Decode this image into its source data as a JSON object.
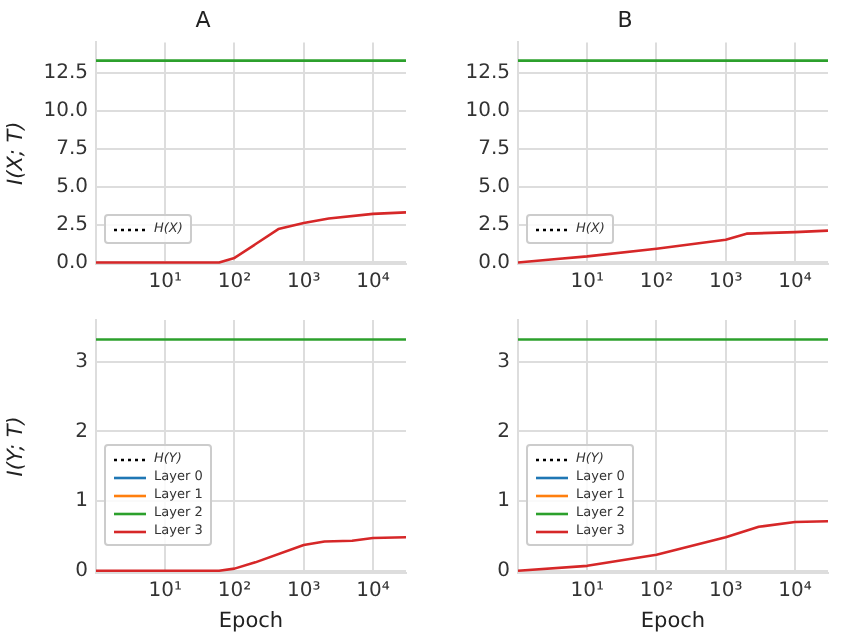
{
  "chart_data": [
    {
      "type": "line",
      "title": "A",
      "ylabel": "I(X; T)",
      "log": "x",
      "grid": true,
      "legend": "bottom left",
      "xlim": [
        1,
        30000
      ],
      "xticks": [
        {
          "value": 10,
          "label": "10¹"
        },
        {
          "value": 100,
          "label": "10²"
        },
        {
          "value": 1000,
          "label": "10³"
        },
        {
          "value": 10000,
          "label": "10⁴"
        }
      ],
      "ylim": [
        -0.1,
        14.5
      ],
      "yticks": [
        {
          "value": 0,
          "label": "0.0"
        },
        {
          "value": 2.5,
          "label": "2.5"
        },
        {
          "value": 5,
          "label": "5.0"
        },
        {
          "value": 7.5,
          "label": "7.5"
        },
        {
          "value": 10,
          "label": "10.0"
        },
        {
          "value": 12.5,
          "label": "12.5"
        }
      ],
      "series": [
        {
          "name": "H(X)",
          "color": "#000000",
          "line_style": "dotted"
        },
        {
          "color": "#2ca02c",
          "x": [
            1,
            30000
          ],
          "values": [
            13.3,
            13.3
          ]
        },
        {
          "color": "#d62728",
          "x": [
            1,
            60,
            100,
            200,
            430,
            1000,
            2300,
            10000,
            30000
          ],
          "values": [
            0,
            0,
            0.3,
            1.2,
            2.2,
            2.6,
            2.9,
            3.2,
            3.3
          ]
        }
      ]
    },
    {
      "type": "line",
      "title": "B",
      "log": "x",
      "grid": true,
      "legend": "bottom left",
      "xlim": [
        1,
        30000
      ],
      "xticks": [
        {
          "value": 10,
          "label": "10¹"
        },
        {
          "value": 100,
          "label": "10²"
        },
        {
          "value": 1000,
          "label": "10³"
        },
        {
          "value": 10000,
          "label": "10⁴"
        }
      ],
      "ylim": [
        -0.1,
        14.5
      ],
      "yticks": [
        {
          "value": 0,
          "label": "0.0"
        },
        {
          "value": 2.5,
          "label": "2.5"
        },
        {
          "value": 5,
          "label": "5.0"
        },
        {
          "value": 7.5,
          "label": "7.5"
        },
        {
          "value": 10,
          "label": "10.0"
        },
        {
          "value": 12.5,
          "label": "12.5"
        }
      ],
      "series": [
        {
          "name": "H(X)",
          "color": "#000000",
          "line_style": "dotted"
        },
        {
          "color": "#2ca02c",
          "x": [
            1,
            30000
          ],
          "values": [
            13.3,
            13.3
          ]
        },
        {
          "color": "#d62728",
          "x": [
            1,
            3,
            10,
            100,
            1000,
            2000,
            10000,
            30000
          ],
          "values": [
            0,
            0.2,
            0.4,
            0.9,
            1.5,
            1.9,
            2.0,
            2.1
          ]
        }
      ]
    },
    {
      "type": "line",
      "ylabel": "I(Y; T)",
      "xlabel": "Epoch",
      "log": "x",
      "grid": true,
      "legend": "bottom left",
      "xlim": [
        1,
        30000
      ],
      "xticks": [
        {
          "value": 10,
          "label": "10¹"
        },
        {
          "value": 100,
          "label": "10²"
        },
        {
          "value": 1000,
          "label": "10³"
        },
        {
          "value": 10000,
          "label": "10⁴"
        }
      ],
      "ylim": [
        -0.03,
        3.6
      ],
      "yticks": [
        0,
        1,
        2,
        3
      ],
      "series": [
        {
          "name": "H(Y)",
          "color": "#000000",
          "line_style": "dotted"
        },
        {
          "name": "Layer 0",
          "color": "#1f77b4"
        },
        {
          "name": "Layer 1",
          "color": "#ff7f0e"
        },
        {
          "name": "Layer 2",
          "color": "#2ca02c",
          "x": [
            1,
            30000
          ],
          "values": [
            3.32,
            3.32
          ]
        },
        {
          "name": "Layer 3",
          "color": "#d62728",
          "x": [
            1,
            60,
            100,
            200,
            1000,
            2000,
            5000,
            10000,
            30000
          ],
          "values": [
            0,
            0,
            0.03,
            0.12,
            0.37,
            0.42,
            0.43,
            0.47,
            0.48
          ]
        }
      ]
    },
    {
      "type": "line",
      "xlabel": "Epoch",
      "log": "x",
      "grid": true,
      "legend": "bottom left",
      "xlim": [
        1,
        30000
      ],
      "xticks": [
        {
          "value": 10,
          "label": "10¹"
        },
        {
          "value": 100,
          "label": "10²"
        },
        {
          "value": 1000,
          "label": "10³"
        },
        {
          "value": 10000,
          "label": "10⁴"
        }
      ],
      "ylim": [
        -0.03,
        3.6
      ],
      "yticks": [
        0,
        1,
        2,
        3
      ],
      "series": [
        {
          "name": "H(Y)",
          "color": "#000000",
          "line_style": "dotted"
        },
        {
          "name": "Layer 0",
          "color": "#1f77b4"
        },
        {
          "name": "Layer 1",
          "color": "#ff7f0e"
        },
        {
          "name": "Layer 2",
          "color": "#2ca02c",
          "x": [
            1,
            30000
          ],
          "values": [
            3.32,
            3.32
          ]
        },
        {
          "name": "Layer 3",
          "color": "#d62728",
          "x": [
            1,
            10,
            100,
            1000,
            3000,
            10000,
            30000
          ],
          "values": [
            0,
            0.07,
            0.23,
            0.48,
            0.63,
            0.7,
            0.71
          ]
        }
      ]
    }
  ]
}
